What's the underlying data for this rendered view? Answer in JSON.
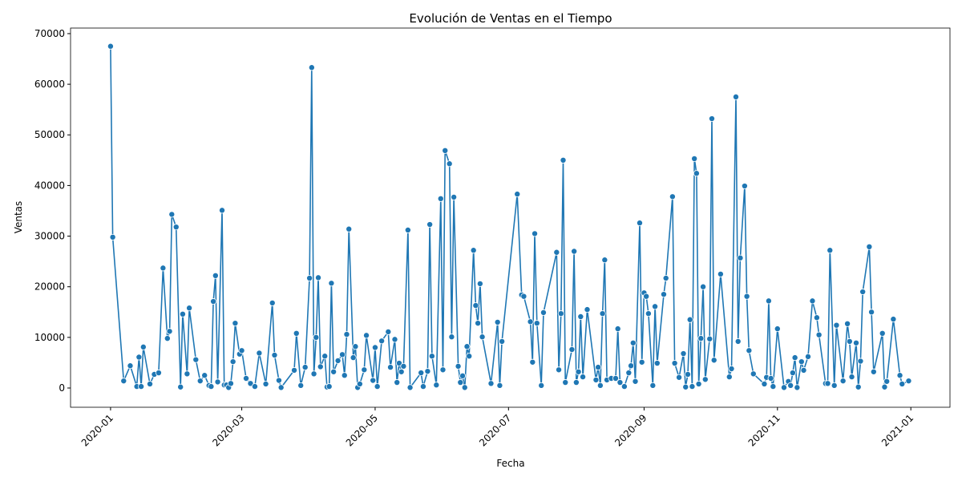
{
  "chart_data": {
    "type": "line",
    "title": "Evolución de Ventas en el Tiempo",
    "x_label": "Fecha",
    "y_label": "Ventas",
    "color": "#1f77b4",
    "grid": false,
    "xlim": [
      -18.3,
      383.9
    ],
    "xticks": [
      {
        "value": 0,
        "label": "2020-01"
      },
      {
        "value": 60,
        "label": "2020-03"
      },
      {
        "value": 121,
        "label": "2020-05"
      },
      {
        "value": 182,
        "label": "2020-07"
      },
      {
        "value": 244,
        "label": "2020-09"
      },
      {
        "value": 305,
        "label": "2020-11"
      },
      {
        "value": 366,
        "label": "2021-01"
      }
    ],
    "ylim": [
      -3800,
      71100
    ],
    "yticks": [
      0,
      10000,
      20000,
      30000,
      40000,
      50000,
      60000,
      70000
    ],
    "x": [
      0,
      1,
      6,
      9,
      12,
      13,
      14,
      15,
      18,
      20,
      22,
      24,
      26,
      27,
      28,
      30,
      32,
      33,
      35,
      36,
      39,
      41,
      43,
      45,
      46,
      47,
      48,
      49,
      51,
      52,
      53,
      54,
      55,
      56,
      57,
      59,
      60,
      62,
      64,
      66,
      68,
      71,
      74,
      75,
      77,
      78,
      84,
      85,
      87,
      89,
      91,
      92,
      93,
      94,
      95,
      96,
      98,
      99,
      100,
      101,
      102,
      104,
      106,
      107,
      108,
      109,
      111,
      112,
      113,
      114,
      116,
      117,
      120,
      121,
      122,
      124,
      127,
      128,
      130,
      131,
      132,
      133,
      134,
      136,
      137,
      142,
      143,
      145,
      146,
      147,
      149,
      151,
      152,
      153,
      155,
      156,
      157,
      159,
      160,
      161,
      162,
      163,
      164,
      166,
      167,
      168,
      169,
      170,
      174,
      177,
      178,
      179,
      186,
      188,
      189,
      192,
      193,
      194,
      195,
      197,
      198,
      204,
      205,
      206,
      207,
      208,
      211,
      212,
      213,
      214,
      215,
      216,
      218,
      222,
      223,
      224,
      225,
      226,
      227,
      229,
      231,
      232,
      233,
      235,
      237,
      238,
      239,
      240,
      242,
      243,
      244,
      245,
      246,
      248,
      249,
      250,
      253,
      254,
      257,
      258,
      260,
      262,
      263,
      264,
      265,
      266,
      267,
      268,
      269,
      270,
      271,
      272,
      274,
      275,
      276,
      279,
      283,
      284,
      286,
      287,
      288,
      290,
      291,
      292,
      294,
      299,
      300,
      301,
      302,
      303,
      305,
      308,
      310,
      311,
      312,
      313,
      314,
      316,
      317,
      319,
      321,
      323,
      324,
      327,
      328,
      329,
      331,
      332,
      335,
      337,
      338,
      339,
      341,
      342,
      343,
      344,
      347,
      348,
      349,
      353,
      354,
      355,
      358,
      361,
      362,
      365
    ],
    "values": [
      67500,
      29800,
      1400,
      4400,
      300,
      6100,
      300,
      8100,
      800,
      2700,
      3000,
      23700,
      9800,
      11200,
      34300,
      31800,
      200,
      14600,
      2800,
      15800,
      5600,
      1400,
      2500,
      500,
      300,
      17100,
      22200,
      1200,
      35100,
      600,
      600,
      100,
      900,
      5200,
      12800,
      6700,
      7400,
      1900,
      900,
      300,
      6900,
      800,
      16800,
      6500,
      1500,
      100,
      3500,
      10800,
      500,
      4100,
      21700,
      63300,
      2800,
      10000,
      21800,
      4200,
      6300,
      200,
      300,
      20700,
      3200,
      5400,
      6600,
      2500,
      10600,
      31400,
      6000,
      8200,
      100,
      800,
      3600,
      10400,
      1500,
      8000,
      300,
      9300,
      11100,
      4100,
      9600,
      1100,
      4900,
      3200,
      4300,
      31200,
      100,
      3000,
      300,
      3300,
      32300,
      6300,
      600,
      37400,
      3600,
      46900,
      44300,
      10100,
      37700,
      4300,
      1100,
      2400,
      100,
      8200,
      6300,
      27200,
      16300,
      12800,
      20600,
      10100,
      900,
      13000,
      500,
      9200,
      38300,
      18400,
      18100,
      13100,
      5100,
      30500,
      12800,
      500,
      14900,
      26800,
      3600,
      14700,
      45000,
      1100,
      7600,
      27000,
      1100,
      3200,
      14100,
      2200,
      15500,
      1600,
      4100,
      500,
      14700,
      25300,
      1600,
      1900,
      1900,
      11700,
      1100,
      300,
      3000,
      4400,
      8900,
      1300,
      32600,
      5100,
      18800,
      18100,
      14700,
      500,
      16100,
      4900,
      18500,
      21700,
      37800,
      4900,
      2100,
      6800,
      200,
      2700,
      13500,
      300,
      45300,
      42400,
      800,
      9800,
      20000,
      1700,
      9700,
      53200,
      5500,
      22500,
      2200,
      3800,
      57500,
      9200,
      25700,
      39900,
      18100,
      7400,
      2800,
      800,
      2100,
      17200,
      1900,
      300,
      11700,
      100,
      1300,
      500,
      3000,
      6000,
      100,
      5200,
      3500,
      6200,
      17200,
      13900,
      10500,
      900,
      900,
      27200,
      500,
      12400,
      1400,
      12700,
      9200,
      2200,
      8900,
      200,
      5300,
      19000,
      27900,
      15000,
      3200,
      10800,
      200,
      1300,
      13600,
      2500,
      800,
      1400
    ]
  }
}
